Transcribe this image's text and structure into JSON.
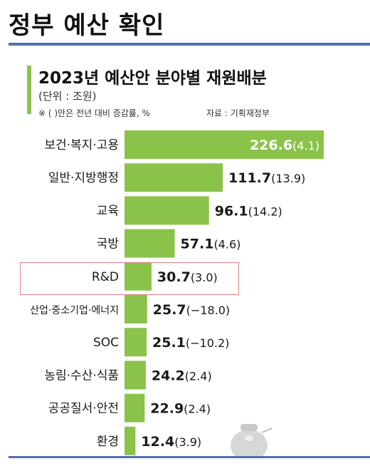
{
  "page": {
    "title": "정부 예산 확인"
  },
  "chart_data": {
    "type": "bar",
    "orientation": "horizontal",
    "title": "2023년 예산안 분야별 재원배분",
    "unit": "(단위 : 조원)",
    "note": "※ (  )안은 전년 대비 증감률, %",
    "source": "자료 : 기획재정부",
    "categories": [
      "보건·복지·고용",
      "일반·지방행정",
      "교육",
      "국방",
      "R&D",
      "산업·중소기업·에너지",
      "SOC",
      "농림·수산·식품",
      "공공질서·안전",
      "환경"
    ],
    "values": [
      226.6,
      111.7,
      96.1,
      57.1,
      30.7,
      25.7,
      25.1,
      24.2,
      22.9,
      12.4
    ],
    "value_labels": [
      "226.6",
      "111.7",
      "96.1",
      "57.1",
      "30.7",
      "25.7",
      "25.1",
      "24.2",
      "22.9",
      "12.4"
    ],
    "change_labels": [
      "(4.1)",
      "(13.9)",
      "(14.2)",
      "(4.6)",
      "(3.0)",
      "(−18.0)",
      "(−10.2)",
      "(2.4)",
      "(2.4)",
      "(3.9)"
    ],
    "highlighted": "R&D",
    "colors": {
      "bar": "#8bc34a",
      "highlight_border": "#e08080",
      "rule": "#4f6fb5"
    }
  }
}
